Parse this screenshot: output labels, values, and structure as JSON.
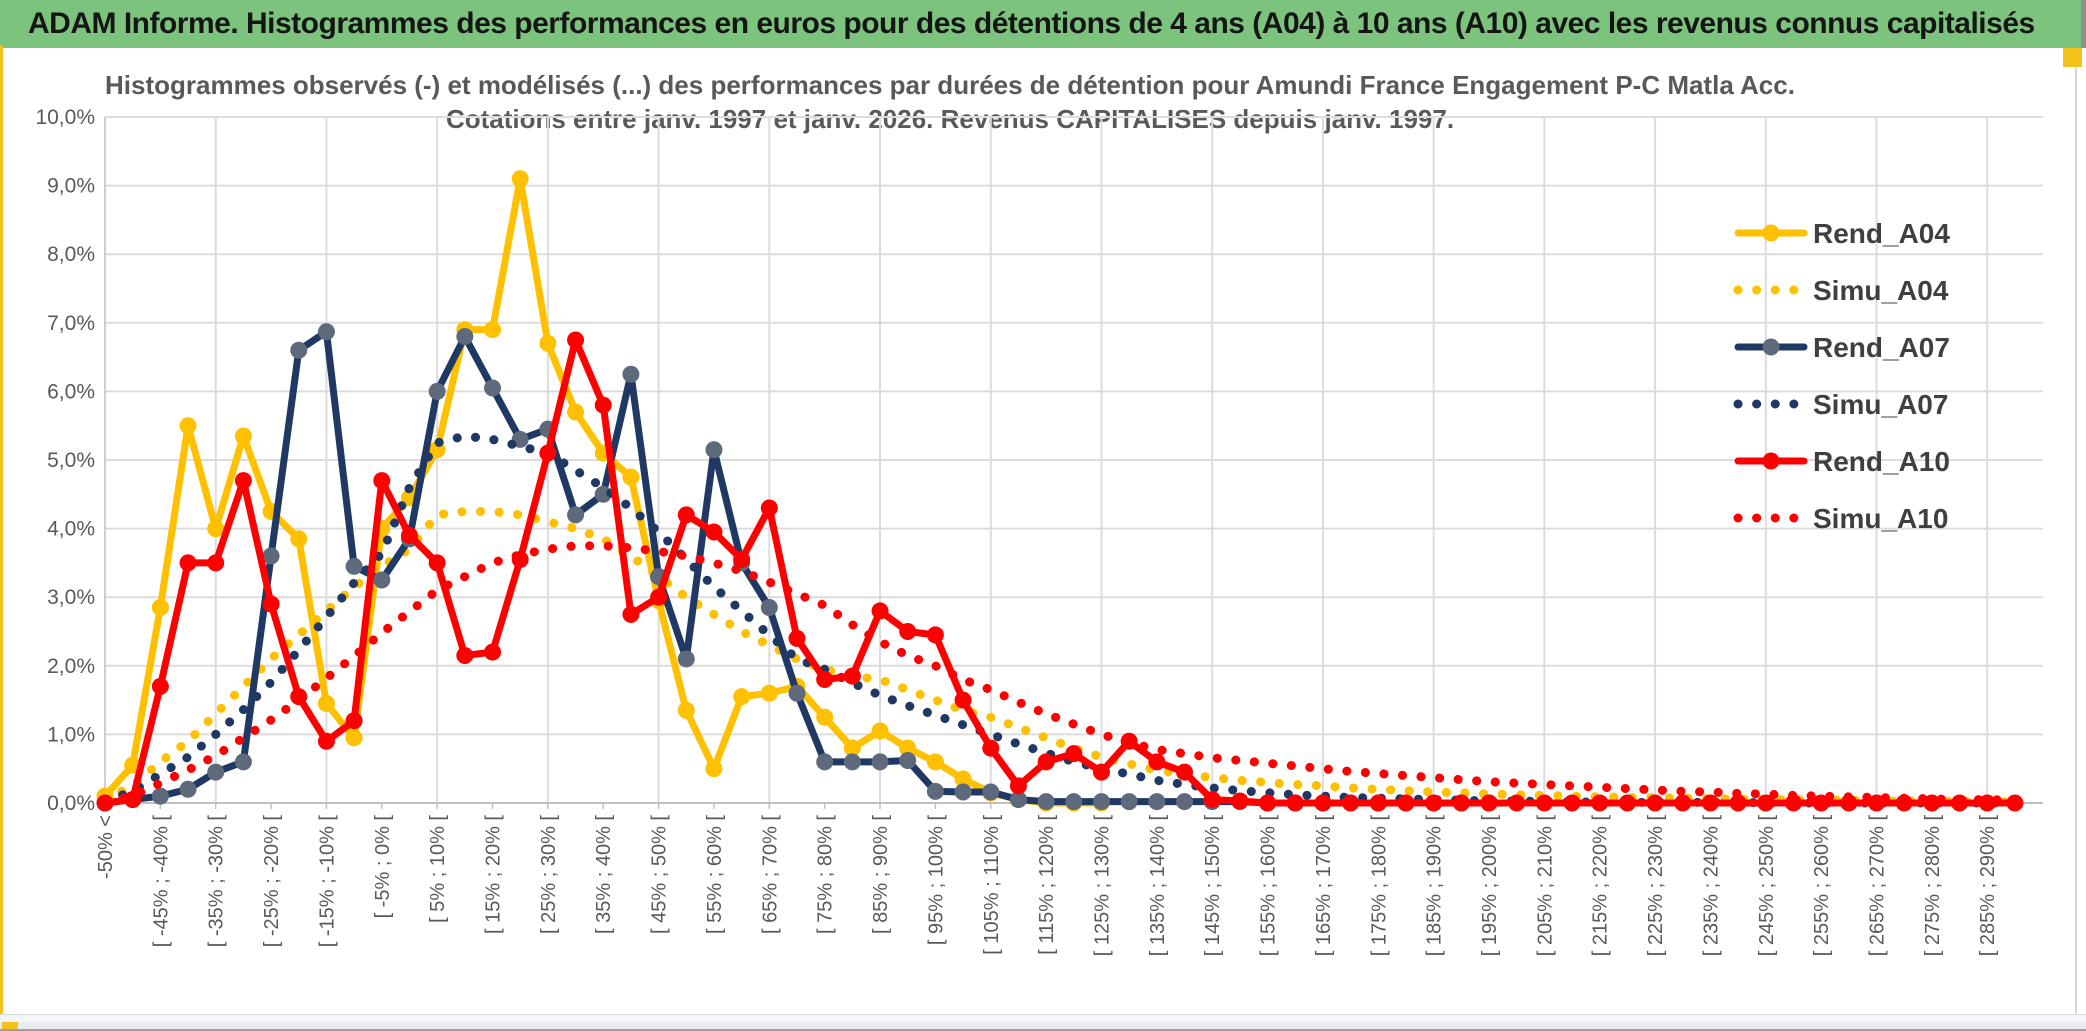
{
  "header": {
    "title": "ADAM Informe. Histogrammes des performances en euros pour des détentions de 4 ans (A04) à 10 ans (A10) avec les revenus connus capitalisés"
  },
  "chart_data": {
    "type": "line",
    "title_line1": "Histogrammes observés (-) et modélisés (...) des performances par durées de détention pour Amundi France Engagement P-C Matla Acc.",
    "title_line2": "Cotations entre janv. 1997 et janv. 2026. Revenus CAPITALISES depuis janv. 1997.",
    "grid": true,
    "legend_position": "right",
    "ylim": [
      0,
      10
    ],
    "ytick_labels": [
      "0,0%",
      "1,0%",
      "2,0%",
      "3,0%",
      "4,0%",
      "5,0%",
      "6,0%",
      "7,0%",
      "8,0%",
      "9,0%",
      "10,0%"
    ],
    "colors": {
      "gold": "#FFC000",
      "navy": "#1F3864",
      "red": "#FE0000",
      "navy_marker": "#5E6A7B",
      "grid": "#DCDCDC",
      "axis": "#C0C0C0",
      "text": "#595959",
      "legend_text": "#3F3F3F"
    },
    "categories": [
      "-50% <",
      "",
      "[ -45% ; -40% [",
      "",
      "[ -35% ; -30% [",
      "",
      "[ -25% ; -20% [",
      "",
      "[ -15% ; -10% [",
      "",
      "[ -5% ; 0% [",
      "",
      "[ 5% ; 10% [",
      "",
      "[ 15% ; 20% [",
      "",
      "[ 25% ; 30% [",
      "",
      "[ 35% ; 40% [",
      "",
      "[ 45% ; 50% [",
      "",
      "[ 55% ; 60% [",
      "",
      "[ 65% ; 70% [",
      "",
      "[ 75% ; 80% [",
      "",
      "[ 85% ; 90% [",
      "",
      "[ 95% ; 100% [",
      "",
      "[ 105% ; 110% [",
      "",
      "[ 115% ; 120% [",
      "",
      "[ 125% ; 130% [",
      "",
      "[ 135% ; 140% [",
      "",
      "[ 145% ; 150% [",
      "",
      "[ 155% ; 160% [",
      "",
      "[ 165% ; 170% [",
      "",
      "[ 175% ; 180% [",
      "",
      "[ 185% ; 190% [",
      "",
      "[ 195% ; 200% [",
      "",
      "[ 205% ; 210% [",
      "",
      "[ 215% ; 220% [",
      "",
      "[ 225% ; 230% [",
      "",
      "[ 235% ; 240% [",
      "",
      "[ 245% ; 250% [",
      "",
      "[ 255% ; 260% [",
      "",
      "[ 265% ; 270% [",
      "",
      "[ 275% ; 280% [",
      "",
      "[ 285% ; 290% [",
      ""
    ],
    "series": [
      {
        "name": "Rend_A04",
        "style": "solid",
        "color": "#FFC000",
        "marker": "#FFC000",
        "values": [
          0.1,
          0.55,
          2.85,
          5.5,
          4.0,
          5.35,
          4.25,
          3.85,
          1.45,
          0.95,
          4.0,
          4.45,
          5.15,
          6.9,
          6.9,
          9.1,
          6.7,
          5.7,
          5.1,
          4.75,
          2.95,
          1.35,
          0.5,
          1.55,
          1.6,
          1.7,
          1.25,
          0.8,
          1.05,
          0.8,
          0.6,
          0.35,
          0.15,
          0.05,
          0,
          0,
          0,
          null,
          null,
          null,
          null,
          null,
          null,
          null,
          null,
          null,
          null,
          null,
          null,
          null,
          null,
          null,
          null,
          null,
          null,
          null,
          null,
          null,
          null,
          null,
          null,
          null,
          null,
          null,
          null,
          null,
          null,
          null,
          null,
          null
        ]
      },
      {
        "name": "Simu_A04",
        "style": "dotted",
        "color": "#FFC000",
        "marker": "#FFC000",
        "values": [
          0.05,
          0.25,
          0.6,
          0.9,
          1.3,
          1.7,
          2.1,
          2.45,
          2.8,
          3.15,
          3.45,
          3.7,
          4.2,
          4.25,
          4.25,
          4.2,
          4.1,
          4.0,
          3.85,
          3.6,
          3.3,
          3.0,
          2.75,
          2.5,
          2.3,
          2.1,
          1.95,
          1.85,
          1.8,
          1.65,
          1.5,
          1.35,
          1.25,
          1.1,
          0.95,
          0.8,
          0.67,
          0.57,
          0.48,
          0.42,
          0.37,
          0.33,
          0.3,
          0.27,
          0.25,
          0.22,
          0.2,
          0.18,
          0.16,
          0.15,
          0.13,
          0.12,
          0.11,
          0.1,
          0.09,
          0.08,
          0.08,
          0.07,
          0.06,
          0.06,
          0.05,
          0.05,
          0.04,
          0.04,
          0.03,
          0.03,
          0.03,
          0.02,
          0.02,
          0.02
        ]
      },
      {
        "name": "Rend_A07",
        "style": "solid",
        "color": "#1F3864",
        "marker": "#5E6A7B",
        "values": [
          0,
          0.05,
          0.1,
          0.2,
          0.45,
          0.6,
          3.6,
          6.6,
          6.87,
          3.45,
          3.25,
          3.85,
          6.0,
          6.8,
          6.05,
          5.3,
          5.45,
          4.2,
          4.5,
          6.25,
          3.3,
          2.1,
          5.15,
          3.5,
          2.85,
          1.6,
          0.6,
          0.6,
          0.6,
          0.62,
          0.17,
          0.16,
          0.16,
          0.05,
          0.02,
          0.02,
          0.02,
          0.02,
          0.02,
          0.02,
          0.02,
          0.02,
          0,
          0,
          0,
          0,
          0,
          0,
          0,
          0,
          0,
          null,
          null,
          null,
          null,
          null,
          null,
          null,
          null,
          null,
          null,
          null,
          null,
          null,
          null,
          null,
          null,
          null,
          null,
          null
        ]
      },
      {
        "name": "Simu_A07",
        "style": "dotted",
        "color": "#1F3864",
        "marker": "#1F3864",
        "values": [
          0.03,
          0.17,
          0.42,
          0.67,
          1.0,
          1.36,
          1.76,
          2.23,
          2.71,
          3.21,
          3.64,
          4.6,
          5.25,
          5.35,
          5.3,
          5.2,
          5.1,
          4.85,
          4.6,
          4.3,
          3.95,
          3.55,
          3.15,
          2.8,
          2.45,
          2.1,
          1.95,
          1.75,
          1.57,
          1.42,
          1.28,
          1.14,
          1.0,
          0.86,
          0.73,
          0.6,
          0.5,
          0.42,
          0.33,
          0.27,
          0.22,
          0.18,
          0.15,
          0.12,
          0.1,
          0.08,
          0.07,
          0.06,
          0.05,
          0.04,
          0.03,
          0.03,
          0.02,
          0.02,
          0.01,
          0.01,
          0.01,
          0.01,
          0.01,
          0.01,
          0,
          0,
          0,
          0,
          0,
          0,
          0,
          0,
          0,
          0
        ]
      },
      {
        "name": "Rend_A10",
        "style": "solid",
        "color": "#FE0000",
        "marker": "#FE0000",
        "values": [
          0,
          0.05,
          1.7,
          3.5,
          3.5,
          4.7,
          2.9,
          1.55,
          0.9,
          1.2,
          4.7,
          3.9,
          3.5,
          2.15,
          2.2,
          3.55,
          5.1,
          6.75,
          5.8,
          2.75,
          3.0,
          4.2,
          3.95,
          3.55,
          4.3,
          2.4,
          1.8,
          1.85,
          2.8,
          2.5,
          2.45,
          1.5,
          0.8,
          0.25,
          0.6,
          0.72,
          0.45,
          0.9,
          0.6,
          0.45,
          0.05,
          0.03,
          0,
          0,
          0,
          0,
          0,
          0,
          0,
          0,
          0,
          0,
          0,
          0,
          0,
          0,
          0,
          0,
          0,
          0,
          0,
          0,
          0,
          0,
          0,
          0,
          0,
          0,
          0,
          0
        ]
      },
      {
        "name": "Simu_A10",
        "style": "dotted",
        "color": "#FE0000",
        "marker": "#FE0000",
        "values": [
          0.02,
          0.1,
          0.29,
          0.48,
          0.69,
          0.95,
          1.21,
          1.5,
          1.82,
          2.14,
          2.48,
          2.79,
          3.1,
          3.3,
          3.5,
          3.62,
          3.7,
          3.75,
          3.75,
          3.72,
          3.67,
          3.6,
          3.5,
          3.38,
          3.22,
          3.05,
          2.88,
          2.6,
          2.35,
          2.15,
          2.0,
          1.8,
          1.65,
          1.47,
          1.3,
          1.15,
          1.0,
          0.88,
          0.78,
          0.72,
          0.66,
          0.62,
          0.58,
          0.54,
          0.5,
          0.46,
          0.43,
          0.4,
          0.37,
          0.34,
          0.31,
          0.29,
          0.27,
          0.25,
          0.23,
          0.21,
          0.19,
          0.17,
          0.16,
          0.14,
          0.13,
          0.11,
          0.1,
          0.09,
          0.08,
          0.07,
          0.06,
          0.05,
          0.05,
          0.04
        ]
      }
    ]
  }
}
